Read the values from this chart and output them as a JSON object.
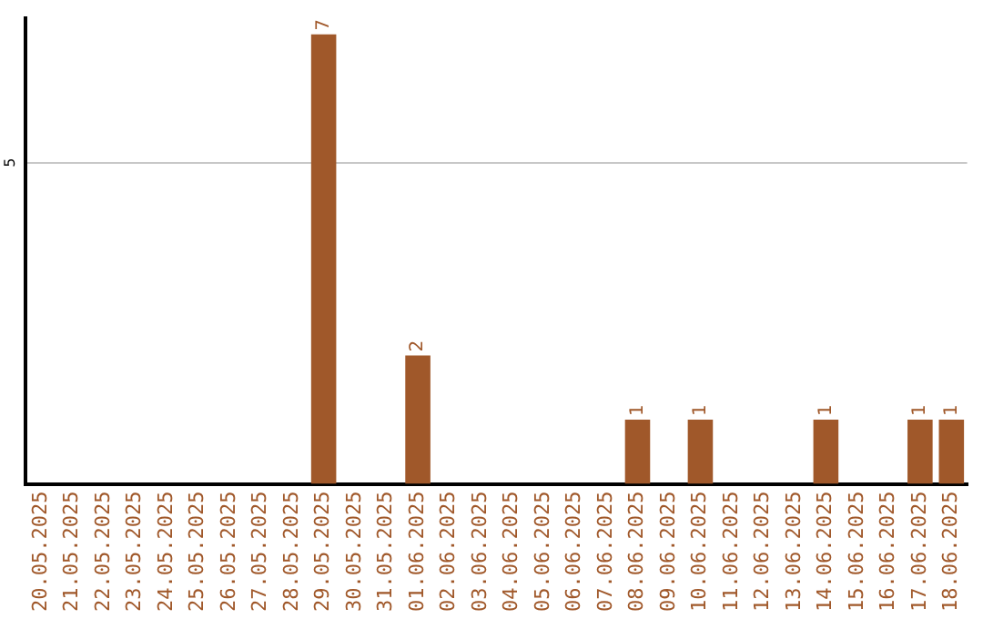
{
  "chart_data": {
    "type": "bar",
    "categories": [
      "20.05.2025",
      "21.05.2025",
      "22.05.2025",
      "23.05.2025",
      "24.05.2025",
      "25.05.2025",
      "26.05.2025",
      "27.05.2025",
      "28.05.2025",
      "29.05.2025",
      "30.05.2025",
      "31.05.2025",
      "01.06.2025",
      "02.06.2025",
      "03.06.2025",
      "04.06.2025",
      "05.06.2025",
      "06.06.2025",
      "07.06.2025",
      "08.06.2025",
      "09.06.2025",
      "10.06.2025",
      "11.06.2025",
      "12.06.2025",
      "13.06.2025",
      "14.06.2025",
      "15.06.2025",
      "16.06.2025",
      "17.06.2025",
      "18.06.2025"
    ],
    "values": [
      null,
      null,
      null,
      null,
      null,
      null,
      null,
      null,
      null,
      7,
      null,
      null,
      2,
      null,
      null,
      null,
      null,
      null,
      null,
      1,
      null,
      1,
      null,
      null,
      null,
      1,
      null,
      null,
      1,
      1
    ],
    "color": "#a0582a",
    "ylim": [
      0,
      7.25
    ],
    "yticks": [
      5
    ],
    "grid": "y",
    "legend": false,
    "data_labels": true
  }
}
